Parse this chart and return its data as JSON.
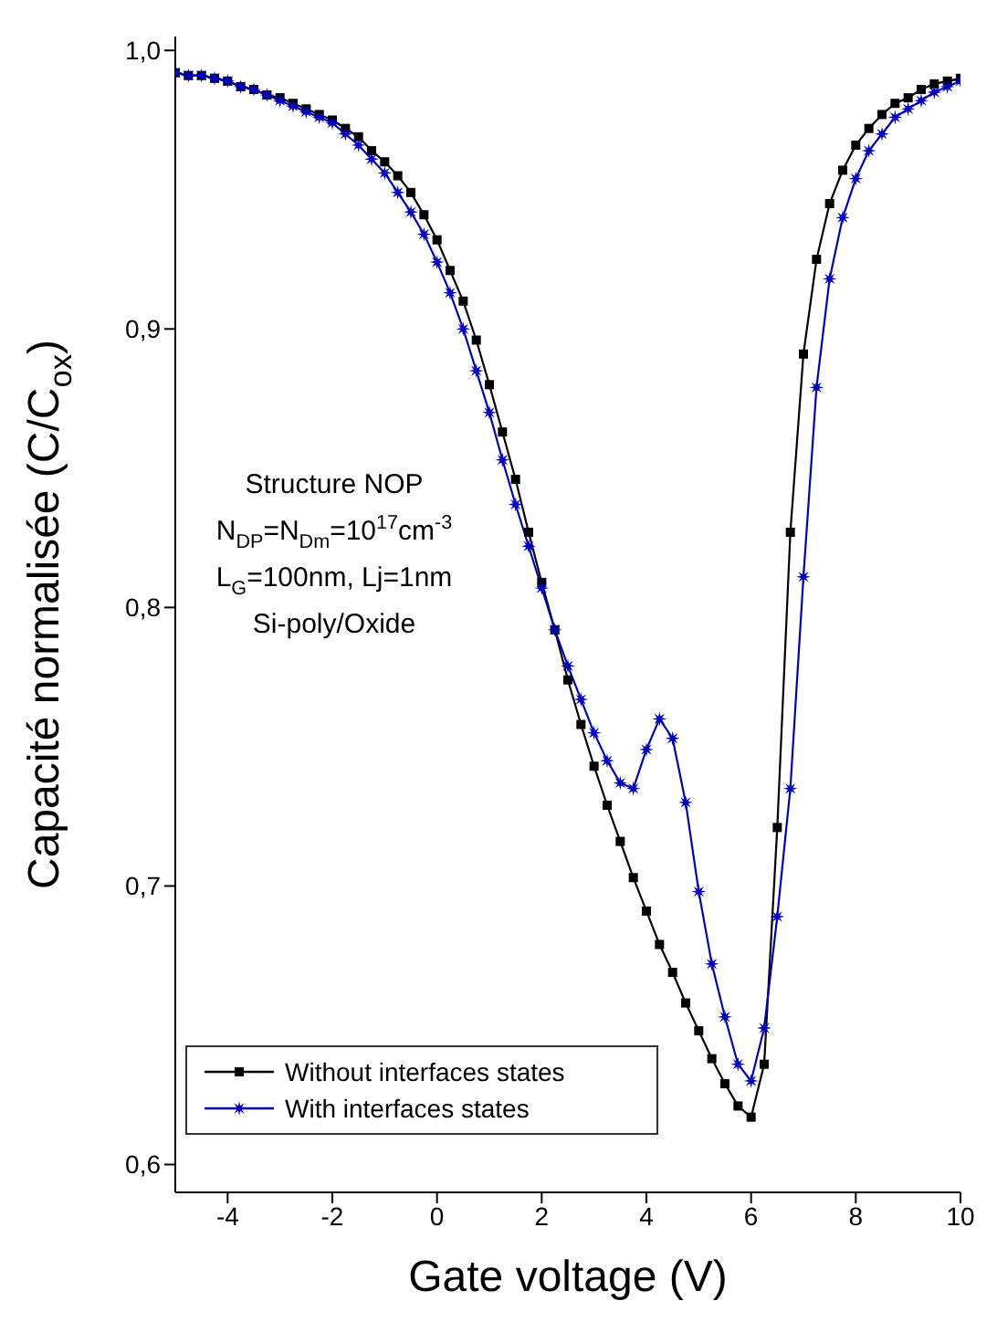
{
  "chart_data": {
    "type": "line",
    "xlabel": "Gate voltage (V)",
    "ylabel": "Capacité normalisée (C/C$_{ox}$)",
    "annotations": [
      "Structure NOP",
      "N$_{DP}$=N$_{Dm}$=10$^{17}$cm$^{-3}$",
      "L$_{G}$=100nm, Lj=1nm",
      "Si-poly/Oxide"
    ],
    "x": [
      -5,
      -4.75,
      -4.5,
      -4.25,
      -4,
      -3.75,
      -3.5,
      -3.25,
      -3,
      -2.75,
      -2.5,
      -2.25,
      -2,
      -1.75,
      -1.5,
      -1.25,
      -1,
      -0.75,
      -0.5,
      -0.25,
      0,
      0.25,
      0.5,
      0.75,
      1,
      1.25,
      1.5,
      1.75,
      2,
      2.25,
      2.5,
      2.75,
      3,
      3.25,
      3.5,
      3.75,
      4,
      4.25,
      4.5,
      4.75,
      5,
      5.25,
      5.5,
      5.75,
      6,
      6.25,
      6.5,
      6.75,
      7,
      7.25,
      7.5,
      7.75,
      8,
      8.25,
      8.5,
      8.75,
      9,
      9.25,
      9.5,
      9.75,
      10
    ],
    "series": [
      {
        "name": "Without interfaces states",
        "color": "#000000",
        "marker": "square",
        "values": [
          0.992,
          0.991,
          0.991,
          0.99,
          0.989,
          0.987,
          0.986,
          0.984,
          0.983,
          0.981,
          0.979,
          0.977,
          0.975,
          0.972,
          0.969,
          0.964,
          0.96,
          0.955,
          0.949,
          0.941,
          0.932,
          0.921,
          0.91,
          0.896,
          0.88,
          0.863,
          0.846,
          0.827,
          0.809,
          0.792,
          0.774,
          0.758,
          0.743,
          0.729,
          0.716,
          0.703,
          0.691,
          0.679,
          0.669,
          0.658,
          0.648,
          0.638,
          0.629,
          0.621,
          0.617,
          0.636,
          0.721,
          0.827,
          0.891,
          0.925,
          0.945,
          0.957,
          0.966,
          0.972,
          0.977,
          0.981,
          0.983,
          0.986,
          0.988,
          0.989,
          0.99
        ]
      },
      {
        "name": "With interfaces states",
        "color": "#0000c0",
        "marker": "star",
        "values": [
          0.992,
          0.991,
          0.991,
          0.99,
          0.989,
          0.987,
          0.986,
          0.984,
          0.982,
          0.98,
          0.978,
          0.976,
          0.974,
          0.97,
          0.966,
          0.961,
          0.956,
          0.949,
          0.942,
          0.934,
          0.924,
          0.913,
          0.9,
          0.885,
          0.87,
          0.853,
          0.837,
          0.822,
          0.807,
          0.792,
          0.779,
          0.767,
          0.755,
          0.745,
          0.737,
          0.735,
          0.749,
          0.76,
          0.753,
          0.73,
          0.698,
          0.672,
          0.653,
          0.636,
          0.63,
          0.649,
          0.689,
          0.735,
          0.811,
          0.879,
          0.918,
          0.94,
          0.954,
          0.964,
          0.97,
          0.976,
          0.979,
          0.982,
          0.985,
          0.987,
          0.989
        ]
      }
    ],
    "xlim": [
      -5,
      10
    ],
    "xticks": [
      -4,
      -2,
      0,
      2,
      4,
      6,
      8,
      10
    ],
    "ylim": [
      0.59,
      1.005
    ],
    "yticks": [
      {
        "value": 0.6,
        "label": "0,6"
      },
      {
        "value": 0.7,
        "label": "0,7"
      },
      {
        "value": 0.8,
        "label": "0,8"
      },
      {
        "value": 0.9,
        "label": "0,9"
      },
      {
        "value": 1.0,
        "label": "1,0"
      }
    ],
    "legend": "bottom left",
    "grid": false
  }
}
